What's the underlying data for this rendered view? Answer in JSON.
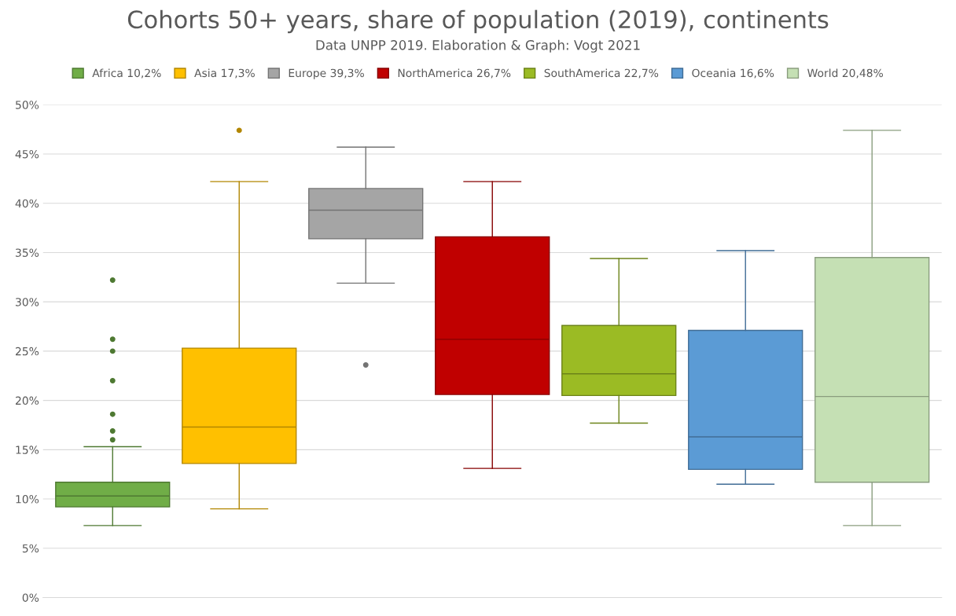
{
  "chart_data": {
    "type": "box",
    "title": "Cohorts 50+ years, share of population (2019), continents",
    "subtitle": "Data UNPP 2019. Elaboration & Graph: Vogt 2021",
    "categories": [
      null,
      null,
      null,
      null,
      null,
      null,
      null
    ],
    "ylim": [
      0,
      50
    ],
    "yticks": [
      {
        "value": 0,
        "label": "0%"
      },
      {
        "value": 5,
        "label": "5%"
      },
      {
        "value": 10,
        "label": "10%"
      },
      {
        "value": 15,
        "label": "15%"
      },
      {
        "value": 20,
        "label": "20%"
      },
      {
        "value": 25,
        "label": "25%"
      },
      {
        "value": 30,
        "label": "30%"
      },
      {
        "value": 35,
        "label": "35%"
      },
      {
        "value": 40,
        "label": "40%"
      },
      {
        "value": 45,
        "label": "45%"
      },
      {
        "value": 50,
        "label": "50%"
      }
    ],
    "grid": "y",
    "legend": "top",
    "series": [
      {
        "name": "Africa 10,2%",
        "color": "#70ad47",
        "boxes": [
          {
            "low": 7.3,
            "q1": 9.2,
            "median": 10.3,
            "q3": 11.7,
            "high": 15.3,
            "outliers": [
              16.0,
              16.9,
              18.6,
              22.0,
              25.0,
              26.2,
              32.2
            ]
          },
          null,
          null,
          null,
          null,
          null,
          null
        ]
      },
      {
        "name": "Asia 17,3%",
        "color": "#ffc000",
        "boxes": [
          null,
          {
            "low": 9.0,
            "q1": 13.6,
            "median": 17.3,
            "q3": 25.3,
            "high": 42.2,
            "outliers": [
              47.4
            ]
          },
          null,
          null,
          null,
          null,
          null
        ]
      },
      {
        "name": "Europe 39,3%",
        "color": "#a5a5a5",
        "boxes": [
          null,
          null,
          {
            "low": 31.9,
            "q1": 36.4,
            "median": 39.3,
            "q3": 41.5,
            "high": 45.7,
            "outliers": [
              23.6
            ]
          },
          null,
          null,
          null,
          null
        ]
      },
      {
        "name": "NorthAmerica 26,7%",
        "color": "#c00000",
        "boxes": [
          null,
          null,
          null,
          {
            "low": 13.1,
            "q1": 20.6,
            "median": 26.2,
            "q3": 36.6,
            "high": 42.2
          },
          null,
          null,
          null
        ]
      },
      {
        "name": "SouthAmerica 22,7%",
        "color": "#9bbb24",
        "boxes": [
          null,
          null,
          null,
          null,
          {
            "low": 17.7,
            "q1": 20.5,
            "median": 22.7,
            "q3": 27.6,
            "high": 34.4
          },
          null,
          null
        ]
      },
      {
        "name": "Oceania 16,6%",
        "color": "#5b9bd5",
        "boxes": [
          null,
          null,
          null,
          null,
          null,
          {
            "low": 11.5,
            "q1": 13.0,
            "median": 16.3,
            "q3": 27.1,
            "high": 35.2
          },
          null
        ]
      },
      {
        "name": "World 20,48%",
        "color": "#c5e0b4",
        "boxes": [
          null,
          null,
          null,
          null,
          null,
          null,
          {
            "low": 7.3,
            "q1": 11.7,
            "median": 20.4,
            "q3": 34.5,
            "high": 47.4
          }
        ]
      }
    ]
  }
}
